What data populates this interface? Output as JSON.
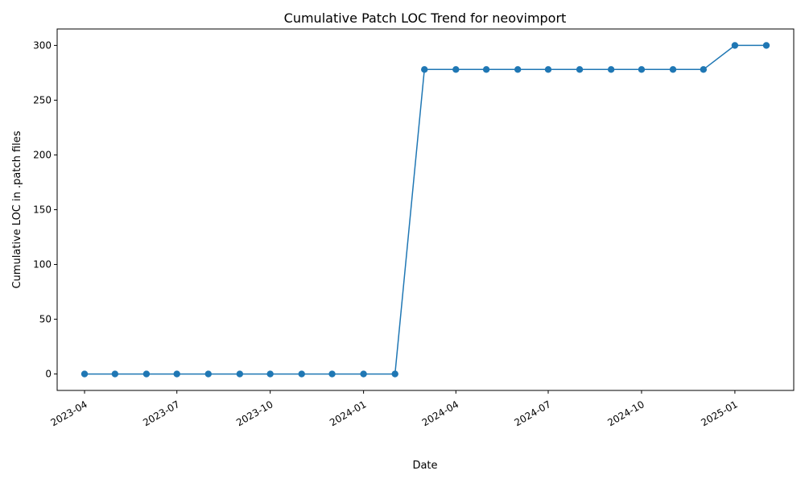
{
  "chart_data": {
    "type": "line",
    "title": "Cumulative Patch LOC Trend for neovimport",
    "xlabel": "Date",
    "ylabel": "Cumulative LOC in .patch files",
    "x": [
      "2023-04-01",
      "2023-05-01",
      "2023-06-01",
      "2023-07-01",
      "2023-08-01",
      "2023-09-01",
      "2023-10-01",
      "2023-11-01",
      "2023-12-01",
      "2024-01-01",
      "2024-02-01",
      "2024-03-01",
      "2024-04-01",
      "2024-05-01",
      "2024-06-01",
      "2024-07-01",
      "2024-08-01",
      "2024-09-01",
      "2024-10-01",
      "2024-11-01",
      "2024-12-01",
      "2025-01-01",
      "2025-02-01"
    ],
    "series": [
      {
        "values": [
          0,
          0,
          0,
          0,
          0,
          0,
          0,
          0,
          0,
          0,
          0,
          278,
          278,
          278,
          278,
          278,
          278,
          278,
          278,
          278,
          278,
          300,
          300
        ]
      }
    ],
    "x_ticks": [
      "2023-04",
      "2023-07",
      "2023-10",
      "2024-01",
      "2024-04",
      "2024-07",
      "2024-10",
      "2025-01"
    ],
    "y_ticks": [
      0,
      50,
      100,
      150,
      200,
      250,
      300
    ],
    "ylim": [
      -15,
      315
    ],
    "xlim": [
      "2023-03-05",
      "2025-02-28"
    ],
    "grid": false,
    "colors": {
      "line": "#1f77b4",
      "axes": "#000000"
    }
  }
}
